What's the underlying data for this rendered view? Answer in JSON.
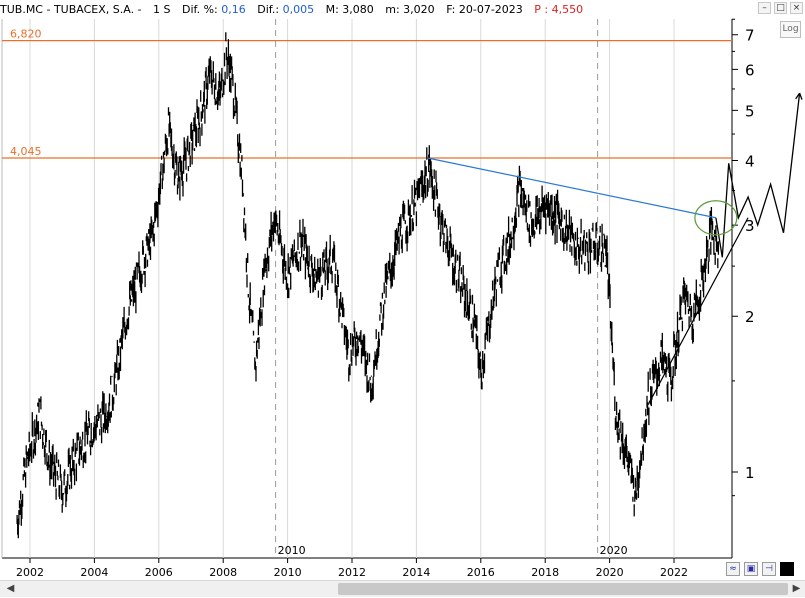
{
  "header": {
    "symbol": "TUB.MC - TUBACEX, S.A. -",
    "timeframe": "1 S",
    "dif_pct_label": "Dif. %:",
    "dif_pct_value": "0,16",
    "dif_label": "Dif.:",
    "dif_value": "0,005",
    "max_label": "M: 3,080",
    "min_label": "m: 3,020",
    "date_label": "F: 20-07-2023",
    "price_label": "P : 4,550"
  },
  "controls": {
    "log_label": "Log"
  },
  "colors": {
    "candle": "#000000",
    "hline": "#e8702a",
    "trendline": "#2a7ad6",
    "circle": "#5a9a3a",
    "grid": "#d9d9d9"
  },
  "chart_data": {
    "type": "line",
    "scale": "log",
    "yticks": [
      1,
      2,
      3,
      4,
      5,
      6,
      7
    ],
    "ytick_labels": [
      "1",
      "2",
      "3",
      "4",
      "5",
      "6",
      "7"
    ],
    "xticks": [
      "2002",
      "2004",
      "2006",
      "2008",
      "2010",
      "2012",
      "2014",
      "2016",
      "2018",
      "2020",
      "2022"
    ],
    "x_marker_labels": [
      "2010",
      "2020"
    ],
    "ylim": [
      0.8,
      8
    ],
    "series": [
      {
        "values": [
          [
            2001.6,
            0.8
          ],
          [
            2001.9,
            1.05
          ],
          [
            2002.3,
            1.3
          ],
          [
            2002.6,
            1.05
          ],
          [
            2003.0,
            0.92
          ],
          [
            2003.5,
            1.1
          ],
          [
            2003.9,
            1.2
          ],
          [
            2004.3,
            1.28
          ],
          [
            2004.6,
            1.45
          ],
          [
            2005.0,
            2.0
          ],
          [
            2005.5,
            2.55
          ],
          [
            2005.8,
            2.85
          ],
          [
            2006.3,
            4.6
          ],
          [
            2006.6,
            3.7
          ],
          [
            2006.9,
            4.1
          ],
          [
            2007.3,
            4.9
          ],
          [
            2007.6,
            5.9
          ],
          [
            2007.9,
            5.3
          ],
          [
            2008.1,
            6.5
          ],
          [
            2008.3,
            5.6
          ],
          [
            2008.6,
            3.7
          ],
          [
            2008.8,
            2.2
          ],
          [
            2009.0,
            1.6
          ],
          [
            2009.3,
            2.5
          ],
          [
            2009.6,
            3.1
          ],
          [
            2010.0,
            2.4
          ],
          [
            2010.4,
            2.8
          ],
          [
            2010.9,
            2.35
          ],
          [
            2011.4,
            2.6
          ],
          [
            2011.9,
            1.7
          ],
          [
            2012.2,
            1.85
          ],
          [
            2012.6,
            1.5
          ],
          [
            2013.0,
            2.2
          ],
          [
            2013.5,
            2.9
          ],
          [
            2014.0,
            3.3
          ],
          [
            2014.4,
            3.9
          ],
          [
            2014.8,
            3.0
          ],
          [
            2015.3,
            2.4
          ],
          [
            2015.8,
            1.95
          ],
          [
            2016.0,
            1.55
          ],
          [
            2016.5,
            2.4
          ],
          [
            2016.9,
            2.8
          ],
          [
            2017.2,
            3.5
          ],
          [
            2017.6,
            3.0
          ],
          [
            2018.0,
            3.3
          ],
          [
            2018.5,
            3.05
          ],
          [
            2019.0,
            2.7
          ],
          [
            2019.5,
            2.75
          ],
          [
            2019.9,
            2.7
          ],
          [
            2020.2,
            1.3
          ],
          [
            2020.5,
            1.1
          ],
          [
            2020.8,
            0.9
          ],
          [
            2021.2,
            1.4
          ],
          [
            2021.6,
            1.65
          ],
          [
            2021.9,
            1.5
          ],
          [
            2022.3,
            2.2
          ],
          [
            2022.6,
            2.0
          ],
          [
            2022.9,
            2.4
          ],
          [
            2023.2,
            3.0
          ],
          [
            2023.4,
            2.6
          ]
        ]
      }
    ],
    "horizontal_lines": [
      {
        "label": "6,820",
        "value": 6.82
      },
      {
        "label": "4,045",
        "value": 4.045
      }
    ],
    "trendlines": [
      {
        "from": [
          2014.35,
          4.045
        ],
        "to": [
          2023.3,
          3.1
        ],
        "color": "blue"
      },
      {
        "from": [
          2021.2,
          1.35
        ],
        "to": [
          2024.3,
          3.1
        ],
        "color": "black"
      }
    ],
    "projection": [
      [
        2023.3,
        3.1
      ],
      [
        2023.5,
        2.6
      ],
      [
        2023.7,
        3.95
      ],
      [
        2024.0,
        3.1
      ],
      [
        2024.3,
        3.4
      ],
      [
        2024.6,
        3.0
      ],
      [
        2025.0,
        3.6
      ],
      [
        2025.4,
        2.9
      ],
      [
        2025.9,
        5.4
      ]
    ],
    "circle_center": [
      2023.3,
      3.1
    ]
  }
}
